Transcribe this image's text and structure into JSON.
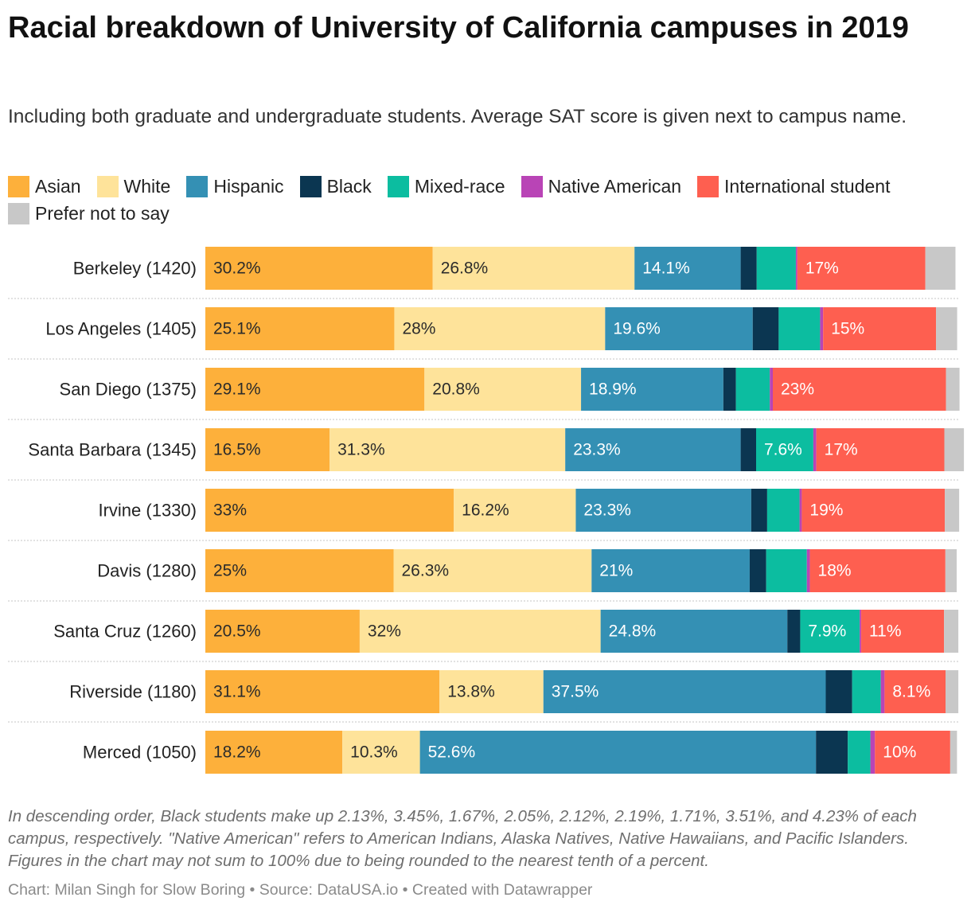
{
  "title": "Racial breakdown of University of California campuses in 2019",
  "subtitle": "Including both graduate and undergraduate students. Average SAT score is given next to campus name.",
  "notes": "In descending order, Black students make up 2.13%, 3.45%, 1.67%, 2.05%, 2.12%, 2.19%, 1.71%, 3.51%, and 4.23% of each campus, respectively. \"Native American\" refers to American Indians, Alaska Natives, Native Hawaiians, and Pacific Islanders. Figures in the chart may not sum to 100% due to being rounded to the nearest tenth of a percent.",
  "source": "Chart: Milan Singh for Slow Boring • Source: DataUSA.io • Created with Datawrapper",
  "chart_data": {
    "type": "bar",
    "orientation": "horizontal",
    "stacked": true,
    "xlim": [
      0,
      100
    ],
    "legend_position": "top",
    "categories": [
      "Berkeley (1420)",
      "Los Angeles (1405)",
      "San Diego (1375)",
      "Santa Barbara (1345)",
      "Irvine (1330)",
      "Davis (1280)",
      "Santa Cruz (1260)",
      "Riverside (1180)",
      "Merced (1050)"
    ],
    "series": [
      {
        "name": "Asian",
        "color": "#fdb03b",
        "values": [
          30.2,
          25.1,
          29.1,
          16.5,
          33.0,
          25.0,
          20.5,
          31.1,
          18.2
        ],
        "labels": [
          "30.2%",
          "25.1%",
          "29.1%",
          "16.5%",
          "33%",
          "25%",
          "20.5%",
          "31.1%",
          "18.2%"
        ]
      },
      {
        "name": "White",
        "color": "#fee39a",
        "values": [
          26.8,
          28.0,
          20.8,
          31.3,
          16.2,
          26.3,
          32.0,
          13.8,
          10.3
        ],
        "labels": [
          "26.8%",
          "28%",
          "20.8%",
          "31.3%",
          "16.2%",
          "26.3%",
          "32%",
          "13.8%",
          "10.3%"
        ]
      },
      {
        "name": "Hispanic",
        "color": "#3490b4",
        "values": [
          14.1,
          19.6,
          18.9,
          23.3,
          23.3,
          21.0,
          24.8,
          37.5,
          52.6
        ],
        "labels": [
          "14.1%",
          "19.6%",
          "18.9%",
          "23.3%",
          "23.3%",
          "21%",
          "24.8%",
          "37.5%",
          "52.6%"
        ]
      },
      {
        "name": "Black",
        "color": "#0b3651",
        "values": [
          2.13,
          3.45,
          1.67,
          2.05,
          2.12,
          2.19,
          1.71,
          3.51,
          4.23
        ],
        "labels": [
          "",
          "",
          "",
          "",
          "",
          "",
          "",
          "",
          ""
        ]
      },
      {
        "name": "Mixed-race",
        "color": "#0cbda0",
        "values": [
          5.2,
          5.5,
          4.5,
          7.6,
          4.3,
          5.4,
          7.9,
          3.8,
          3.0
        ],
        "labels": [
          "",
          "",
          "",
          "7.6%",
          "",
          "",
          "7.9%",
          "",
          ""
        ]
      },
      {
        "name": "Native American",
        "color": "#b944b6",
        "values": [
          0.2,
          0.4,
          0.4,
          0.4,
          0.3,
          0.4,
          0.2,
          0.5,
          0.6
        ],
        "labels": [
          "",
          "",
          "",
          "",
          "",
          "",
          "",
          "",
          ""
        ]
      },
      {
        "name": "International student",
        "color": "#fe5f50",
        "values": [
          17.0,
          15.0,
          23.0,
          17.0,
          19.0,
          18.0,
          11.0,
          8.1,
          10.0
        ],
        "labels": [
          "17%",
          "15%",
          "23%",
          "17%",
          "19%",
          "18%",
          "11%",
          "8.1%",
          "10%"
        ]
      },
      {
        "name": "Prefer not to say",
        "color": "#c8c8c8",
        "values": [
          4.0,
          2.8,
          1.8,
          2.6,
          1.9,
          1.5,
          1.9,
          1.7,
          0.9
        ],
        "labels": [
          "",
          "",
          "",
          "",
          "",
          "",
          "",
          "",
          ""
        ]
      }
    ]
  }
}
